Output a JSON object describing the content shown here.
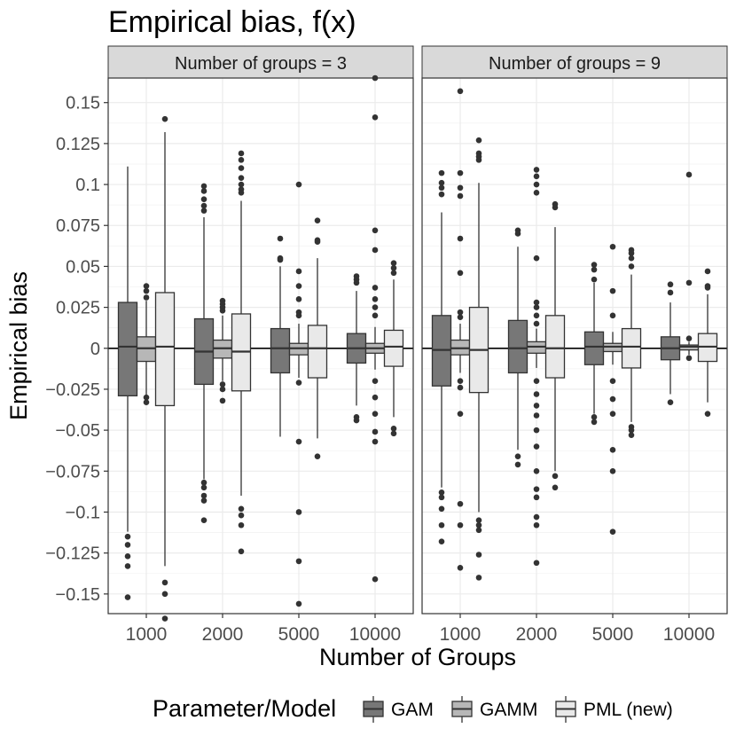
{
  "chart_data": {
    "type": "boxplot",
    "title": "Empirical bias, f(x)",
    "xlabel": "Number of Groups",
    "ylabel": "Empirical bias",
    "ylim": [
      -0.162,
      0.165
    ],
    "y_ticks": [
      0.15,
      0.125,
      0.1,
      0.075,
      0.05,
      0.025,
      0,
      -0.025,
      -0.05,
      -0.075,
      -0.1,
      -0.125,
      -0.15
    ],
    "y_tick_labels": [
      "0.15",
      "0.125",
      "0.1",
      "0.075",
      "0.05",
      "0.025",
      "0",
      "−0.025",
      "−0.05",
      "−0.075",
      "−0.1",
      "−0.125",
      "−0.15"
    ],
    "categories": [
      "1000",
      "2000",
      "5000",
      "10000"
    ],
    "legend": {
      "title": "Parameter/Model",
      "position": "bottom",
      "entries": [
        {
          "name": "GAM",
          "color": "#777777"
        },
        {
          "name": "GAMM",
          "color": "#b7b7b7"
        },
        {
          "name": "PML (new)",
          "color": "#e9e9e9"
        }
      ]
    },
    "colors": {
      "outline": "#333333",
      "outlier": "#333333",
      "grid": "#ebebeb",
      "strip": "#d9d9d9",
      "zero_line": "#000000"
    },
    "panels": [
      {
        "strip": "Number of groups = 3",
        "groups": [
          {
            "category": "1000",
            "boxes": [
              {
                "series": "GAM",
                "lo": -0.112,
                "q1": -0.029,
                "med": 0.001,
                "q3": 0.028,
                "hi": 0.111,
                "outliers": [
                  -0.115,
                  -0.12,
                  -0.127,
                  -0.133,
                  -0.152
                ]
              },
              {
                "series": "GAMM",
                "lo": -0.029,
                "q1": -0.008,
                "med": 0.0,
                "q3": 0.007,
                "hi": 0.029,
                "outliers": [
                  0.038,
                  0.035,
                  0.031,
                  -0.03,
                  -0.033
                ]
              },
              {
                "series": "PML (new)",
                "lo": -0.133,
                "q1": -0.035,
                "med": 0.001,
                "q3": 0.034,
                "hi": 0.132,
                "outliers": [
                  0.14,
                  -0.143,
                  -0.15,
                  -0.165
                ]
              }
            ]
          },
          {
            "category": "2000",
            "boxes": [
              {
                "series": "GAM",
                "lo": -0.08,
                "q1": -0.022,
                "med": -0.002,
                "q3": 0.018,
                "hi": 0.08,
                "outliers": [
                  0.099,
                  0.096,
                  0.091,
                  0.087,
                  0.084,
                  -0.082,
                  -0.085,
                  -0.09,
                  -0.093,
                  -0.105
                ]
              },
              {
                "series": "GAMM",
                "lo": -0.02,
                "q1": -0.006,
                "med": 0.0,
                "q3": 0.005,
                "hi": 0.02,
                "outliers": [
                  0.029,
                  0.027,
                  0.025,
                  0.023,
                  -0.022,
                  -0.025,
                  -0.032
                ]
              },
              {
                "series": "PML (new)",
                "lo": -0.09,
                "q1": -0.026,
                "med": -0.002,
                "q3": 0.021,
                "hi": 0.09,
                "outliers": [
                  0.119,
                  0.115,
                  0.11,
                  0.104,
                  0.1,
                  0.097,
                  0.095,
                  -0.098,
                  -0.102,
                  -0.108,
                  -0.124
                ]
              }
            ]
          },
          {
            "category": "5000",
            "boxes": [
              {
                "series": "GAM",
                "lo": -0.054,
                "q1": -0.015,
                "med": 0.0,
                "q3": 0.012,
                "hi": 0.05,
                "outliers": [
                  0.067,
                  0.055,
                  0.054
                ]
              },
              {
                "series": "GAMM",
                "lo": -0.018,
                "q1": -0.004,
                "med": 0.0,
                "q3": 0.003,
                "hi": 0.015,
                "outliers": [
                  0.1,
                  0.047,
                  0.038,
                  0.03,
                  0.022,
                  0.02,
                  -0.021,
                  -0.057,
                  -0.1,
                  -0.13,
                  -0.156
                ]
              },
              {
                "series": "PML (new)",
                "lo": -0.055,
                "q1": -0.018,
                "med": 0.0,
                "q3": 0.014,
                "hi": 0.055,
                "outliers": [
                  0.078,
                  0.066,
                  0.065,
                  -0.066
                ]
              }
            ]
          },
          {
            "category": "10000",
            "boxes": [
              {
                "series": "GAM",
                "lo": -0.035,
                "q1": -0.009,
                "med": 0.0,
                "q3": 0.009,
                "hi": 0.035,
                "outliers": [
                  0.044,
                  0.042,
                  0.04,
                  -0.042,
                  -0.044
                ]
              },
              {
                "series": "GAMM",
                "lo": -0.013,
                "q1": -0.003,
                "med": 0.0,
                "q3": 0.003,
                "hi": 0.013,
                "outliers": [
                  0.165,
                  0.141,
                  0.072,
                  0.06,
                  0.037,
                  0.03,
                  0.025,
                  0.02,
                  -0.02,
                  -0.03,
                  -0.04,
                  -0.051,
                  -0.057,
                  -0.141
                ]
              },
              {
                "series": "PML (new)",
                "lo": -0.042,
                "q1": -0.011,
                "med": 0.001,
                "q3": 0.011,
                "hi": 0.042,
                "outliers": [
                  0.052,
                  0.049,
                  0.046,
                  -0.049,
                  -0.052
                ]
              }
            ]
          }
        ]
      },
      {
        "strip": "Number of groups = 9",
        "groups": [
          {
            "category": "1000",
            "boxes": [
              {
                "series": "GAM",
                "lo": -0.085,
                "q1": -0.023,
                "med": -0.001,
                "q3": 0.02,
                "hi": 0.083,
                "outliers": [
                  0.107,
                  0.101,
                  0.098,
                  0.094,
                  -0.088,
                  -0.091,
                  -0.098,
                  -0.108,
                  -0.118
                ]
              },
              {
                "series": "GAMM",
                "lo": -0.015,
                "q1": -0.004,
                "med": 0.0,
                "q3": 0.005,
                "hi": 0.015,
                "outliers": [
                  0.157,
                  0.107,
                  0.098,
                  0.093,
                  0.067,
                  0.046,
                  0.022,
                  0.019,
                  -0.02,
                  -0.024,
                  -0.04,
                  -0.095,
                  -0.108,
                  -0.134
                ]
              },
              {
                "series": "PML (new)",
                "lo": -0.1,
                "q1": -0.027,
                "med": -0.001,
                "q3": 0.025,
                "hi": 0.101,
                "outliers": [
                  0.127,
                  0.119,
                  0.117,
                  0.115,
                  -0.105,
                  -0.108,
                  -0.111,
                  -0.126,
                  -0.14
                ]
              }
            ]
          },
          {
            "category": "2000",
            "boxes": [
              {
                "series": "GAM",
                "lo": -0.062,
                "q1": -0.015,
                "med": 0.0,
                "q3": 0.017,
                "hi": 0.062,
                "outliers": [
                  0.072,
                  0.07,
                  -0.066,
                  -0.071
                ]
              },
              {
                "series": "GAMM",
                "lo": -0.012,
                "q1": -0.003,
                "med": 0.001,
                "q3": 0.004,
                "hi": 0.012,
                "outliers": [
                  0.109,
                  0.105,
                  0.1,
                  0.095,
                  0.055,
                  0.028,
                  0.025,
                  0.02,
                  0.015,
                  -0.02,
                  -0.028,
                  -0.035,
                  -0.041,
                  -0.05,
                  -0.06,
                  -0.075,
                  -0.086,
                  -0.091,
                  -0.103,
                  -0.108,
                  -0.131
                ]
              },
              {
                "series": "PML (new)",
                "lo": -0.075,
                "q1": -0.018,
                "med": 0.0,
                "q3": 0.02,
                "hi": 0.074,
                "outliers": [
                  0.088,
                  0.086,
                  -0.078,
                  -0.085
                ]
              }
            ]
          },
          {
            "category": "5000",
            "boxes": [
              {
                "series": "GAM",
                "lo": -0.04,
                "q1": -0.01,
                "med": 0.001,
                "q3": 0.01,
                "hi": 0.04,
                "outliers": [
                  0.051,
                  0.048,
                  0.042,
                  -0.042,
                  -0.045
                ]
              },
              {
                "series": "GAMM",
                "lo": -0.01,
                "q1": -0.002,
                "med": 0.001,
                "q3": 0.003,
                "hi": 0.01,
                "outliers": [
                  0.062,
                  0.035,
                  0.02,
                  -0.02,
                  -0.031,
                  -0.04,
                  -0.062,
                  -0.075,
                  -0.112
                ]
              },
              {
                "series": "PML (new)",
                "lo": -0.045,
                "q1": -0.012,
                "med": 0.001,
                "q3": 0.012,
                "hi": 0.045,
                "outliers": [
                  0.06,
                  0.058,
                  0.055,
                  0.05,
                  -0.048,
                  -0.05,
                  -0.053
                ]
              }
            ]
          },
          {
            "category": "10000",
            "boxes": [
              {
                "series": "GAM",
                "lo": -0.028,
                "q1": -0.007,
                "med": 0.0,
                "q3": 0.007,
                "hi": 0.028,
                "outliers": [
                  0.039,
                  0.034,
                  -0.033
                ]
              },
              {
                "series": "GAMM",
                "lo": -0.004,
                "q1": -0.001,
                "med": 0.001,
                "q3": 0.002,
                "hi": 0.004,
                "outliers": [
                  0.106,
                  0.04,
                  0.006,
                  -0.006
                ]
              },
              {
                "series": "PML (new)",
                "lo": -0.033,
                "q1": -0.008,
                "med": 0.001,
                "q3": 0.009,
                "hi": 0.033,
                "outliers": [
                  0.047,
                  0.038,
                  0.037,
                  -0.04
                ]
              }
            ]
          }
        ]
      }
    ]
  }
}
